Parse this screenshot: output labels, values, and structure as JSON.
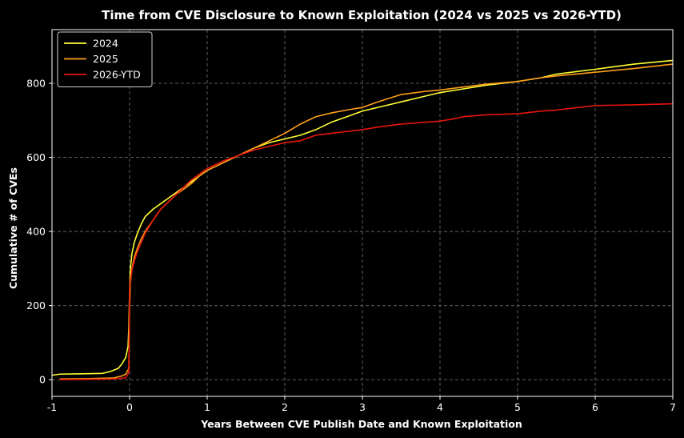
{
  "chart_data": {
    "type": "line",
    "title": "Time from CVE Disclosure to Known Exploitation (2024 vs 2025 vs 2026-YTD)",
    "xlabel": "Years Between CVE Publish Date and Known Exploitation",
    "ylabel": "Cumulative # of CVEs",
    "xlim": [
      -1,
      7
    ],
    "ylim": [
      -45,
      945
    ],
    "xticks": [
      -1,
      0,
      1,
      2,
      3,
      4,
      5,
      6,
      7
    ],
    "xtick_labels": [
      "-1",
      "0",
      "1",
      "2",
      "3",
      "4",
      "5",
      "6",
      "7"
    ],
    "yticks": [
      0,
      200,
      400,
      600,
      800
    ],
    "ytick_labels": [
      "0",
      "200",
      "400",
      "600",
      "800"
    ],
    "grid": true,
    "legend_position": "top-left",
    "background": "#000000",
    "series": [
      {
        "name": "2024",
        "color": "#ffff33",
        "points": [
          [
            -1,
            12
          ],
          [
            -0.9,
            15
          ],
          [
            -0.6,
            16
          ],
          [
            -0.35,
            17
          ],
          [
            -0.25,
            22
          ],
          [
            -0.15,
            30
          ],
          [
            -0.1,
            42
          ],
          [
            -0.05,
            60
          ],
          [
            -0.02,
            90
          ],
          [
            -0.01,
            140
          ],
          [
            0,
            240
          ],
          [
            0.01,
            300
          ],
          [
            0.03,
            340
          ],
          [
            0.06,
            370
          ],
          [
            0.1,
            395
          ],
          [
            0.15,
            420
          ],
          [
            0.2,
            440
          ],
          [
            0.3,
            460
          ],
          [
            0.4,
            475
          ],
          [
            0.5,
            490
          ],
          [
            0.6,
            505
          ],
          [
            0.7,
            520
          ],
          [
            0.8,
            535
          ],
          [
            0.9,
            550
          ],
          [
            1.0,
            565
          ],
          [
            1.2,
            585
          ],
          [
            1.4,
            605
          ],
          [
            1.6,
            625
          ],
          [
            1.8,
            640
          ],
          [
            2.0,
            650
          ],
          [
            2.2,
            660
          ],
          [
            2.4,
            675
          ],
          [
            2.6,
            695
          ],
          [
            2.8,
            710
          ],
          [
            3.0,
            725
          ],
          [
            3.2,
            735
          ],
          [
            3.5,
            750
          ],
          [
            3.8,
            765
          ],
          [
            4.0,
            775
          ],
          [
            4.3,
            785
          ],
          [
            4.6,
            795
          ],
          [
            5.0,
            805
          ],
          [
            5.3,
            815
          ],
          [
            5.5,
            825
          ],
          [
            6.0,
            838
          ],
          [
            6.5,
            852
          ],
          [
            7.0,
            862
          ]
        ]
      },
      {
        "name": "2025",
        "color": "#ff9f1a",
        "points": [
          [
            -0.9,
            2
          ],
          [
            -0.5,
            3
          ],
          [
            -0.2,
            5
          ],
          [
            -0.1,
            10
          ],
          [
            -0.05,
            15
          ],
          [
            -0.01,
            30
          ],
          [
            0,
            190
          ],
          [
            0.01,
            260
          ],
          [
            0.03,
            300
          ],
          [
            0.06,
            330
          ],
          [
            0.1,
            355
          ],
          [
            0.15,
            380
          ],
          [
            0.2,
            400
          ],
          [
            0.3,
            430
          ],
          [
            0.4,
            460
          ],
          [
            0.5,
            480
          ],
          [
            0.6,
            500
          ],
          [
            0.7,
            515
          ],
          [
            0.8,
            530
          ],
          [
            0.9,
            550
          ],
          [
            1.0,
            565
          ],
          [
            1.2,
            585
          ],
          [
            1.4,
            605
          ],
          [
            1.6,
            625
          ],
          [
            1.8,
            645
          ],
          [
            2.0,
            665
          ],
          [
            2.2,
            690
          ],
          [
            2.4,
            710
          ],
          [
            2.6,
            720
          ],
          [
            2.8,
            728
          ],
          [
            3.0,
            735
          ],
          [
            3.2,
            750
          ],
          [
            3.5,
            770
          ],
          [
            3.8,
            778
          ],
          [
            4.0,
            782
          ],
          [
            4.3,
            790
          ],
          [
            4.6,
            798
          ],
          [
            5.0,
            805
          ],
          [
            5.3,
            815
          ],
          [
            5.5,
            820
          ],
          [
            6.0,
            830
          ],
          [
            6.5,
            840
          ],
          [
            7.0,
            852
          ]
        ]
      },
      {
        "name": "2026-YTD",
        "color": "#e8150c",
        "points": [
          [
            -0.9,
            0
          ],
          [
            -0.5,
            1
          ],
          [
            -0.2,
            2
          ],
          [
            -0.05,
            5
          ],
          [
            -0.01,
            20
          ],
          [
            0,
            240
          ],
          [
            0.01,
            270
          ],
          [
            0.03,
            295
          ],
          [
            0.06,
            320
          ],
          [
            0.1,
            345
          ],
          [
            0.15,
            370
          ],
          [
            0.2,
            395
          ],
          [
            0.3,
            430
          ],
          [
            0.4,
            460
          ],
          [
            0.5,
            480
          ],
          [
            0.6,
            500
          ],
          [
            0.7,
            520
          ],
          [
            0.8,
            540
          ],
          [
            0.9,
            555
          ],
          [
            1.0,
            570
          ],
          [
            1.2,
            590
          ],
          [
            1.4,
            605
          ],
          [
            1.6,
            620
          ],
          [
            1.8,
            630
          ],
          [
            2.0,
            640
          ],
          [
            2.2,
            645
          ],
          [
            2.4,
            660
          ],
          [
            2.6,
            665
          ],
          [
            2.8,
            670
          ],
          [
            3.0,
            675
          ],
          [
            3.2,
            682
          ],
          [
            3.5,
            690
          ],
          [
            3.8,
            695
          ],
          [
            4.0,
            698
          ],
          [
            4.2,
            705
          ],
          [
            4.3,
            710
          ],
          [
            4.6,
            715
          ],
          [
            5.0,
            718
          ],
          [
            5.3,
            725
          ],
          [
            5.5,
            728
          ],
          [
            6.0,
            740
          ],
          [
            6.5,
            742
          ],
          [
            7.0,
            745
          ]
        ]
      }
    ]
  }
}
